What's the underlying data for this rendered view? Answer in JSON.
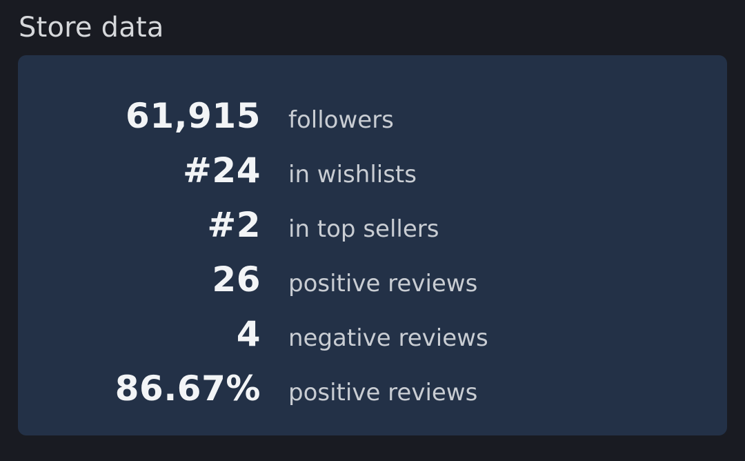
{
  "section": {
    "title": "Store data"
  },
  "stats": [
    {
      "value": "61,915",
      "label": "followers"
    },
    {
      "value": "#24",
      "label": "in wishlists"
    },
    {
      "value": "#2",
      "label": "in top sellers"
    },
    {
      "value": "26",
      "label": "positive reviews"
    },
    {
      "value": "4",
      "label": "negative reviews"
    },
    {
      "value": "86.67%",
      "label": "positive reviews"
    }
  ],
  "colors": {
    "page_background": "#191b22",
    "card_background": "#233147",
    "value_text": "#f2f4f6",
    "label_text": "#c9cdd3",
    "title_text": "#d6d8db"
  }
}
